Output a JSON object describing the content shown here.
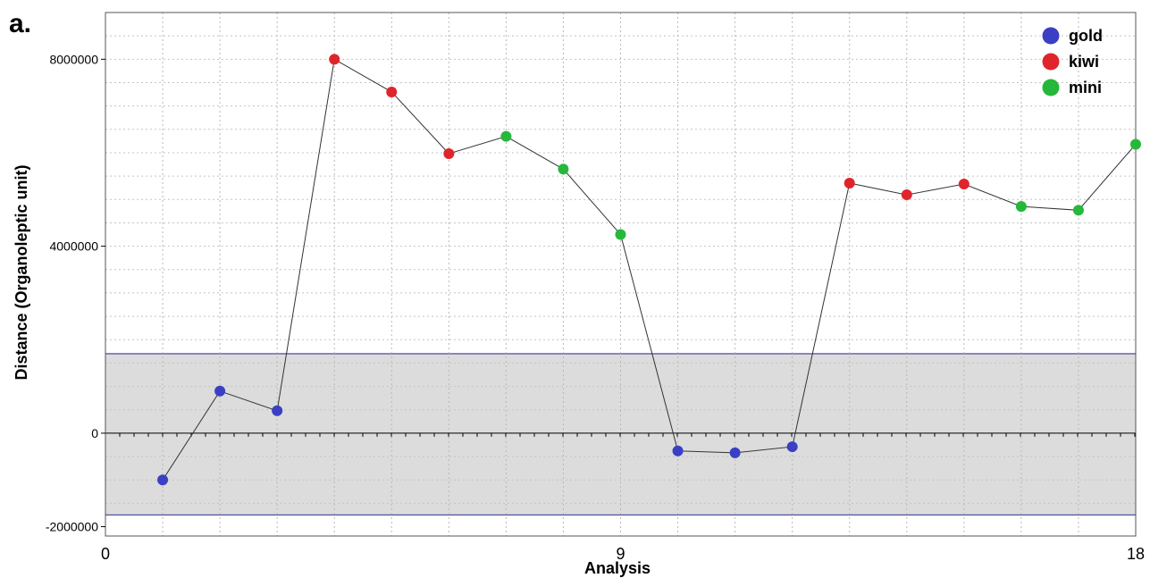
{
  "panel_label": "a.",
  "chart_data": {
    "type": "scatter",
    "xlabel": "Analysis",
    "ylabel": "Distance (Organoleptic unit)",
    "xlim": [
      0,
      18
    ],
    "ylim": [
      -2200000,
      9000000
    ],
    "x_ticks": [
      0,
      9,
      18
    ],
    "x_tick_labels": [
      "0",
      "9",
      "18"
    ],
    "y_ticks": [
      -2000000,
      0,
      4000000,
      8000000
    ],
    "y_tick_labels": [
      "-2000000",
      "0",
      "4000000",
      "8000000"
    ],
    "grid": true,
    "legend_position": "top-right",
    "acceptance_band": {
      "low": -1750000,
      "high": 1700000,
      "color": "#dcdcdc",
      "border_color": "#5a5aa8"
    },
    "line_color": "#333333",
    "series": [
      {
        "name": "gold",
        "color": "#3a3fc4",
        "x": [
          1,
          2,
          3,
          10,
          11,
          12
        ],
        "y": [
          -1000000,
          900000,
          480000,
          -380000,
          -420000,
          -290000
        ]
      },
      {
        "name": "kiwi",
        "color": "#e0242b",
        "x": [
          4,
          5,
          6,
          13,
          14,
          15
        ],
        "y": [
          8000000,
          7300000,
          5980000,
          5350000,
          5100000,
          5330000
        ]
      },
      {
        "name": "mini",
        "color": "#25b83b",
        "x": [
          7,
          8,
          9,
          16,
          17,
          18
        ],
        "y": [
          6350000,
          5650000,
          4250000,
          4850000,
          4770000,
          6180000
        ]
      }
    ]
  }
}
